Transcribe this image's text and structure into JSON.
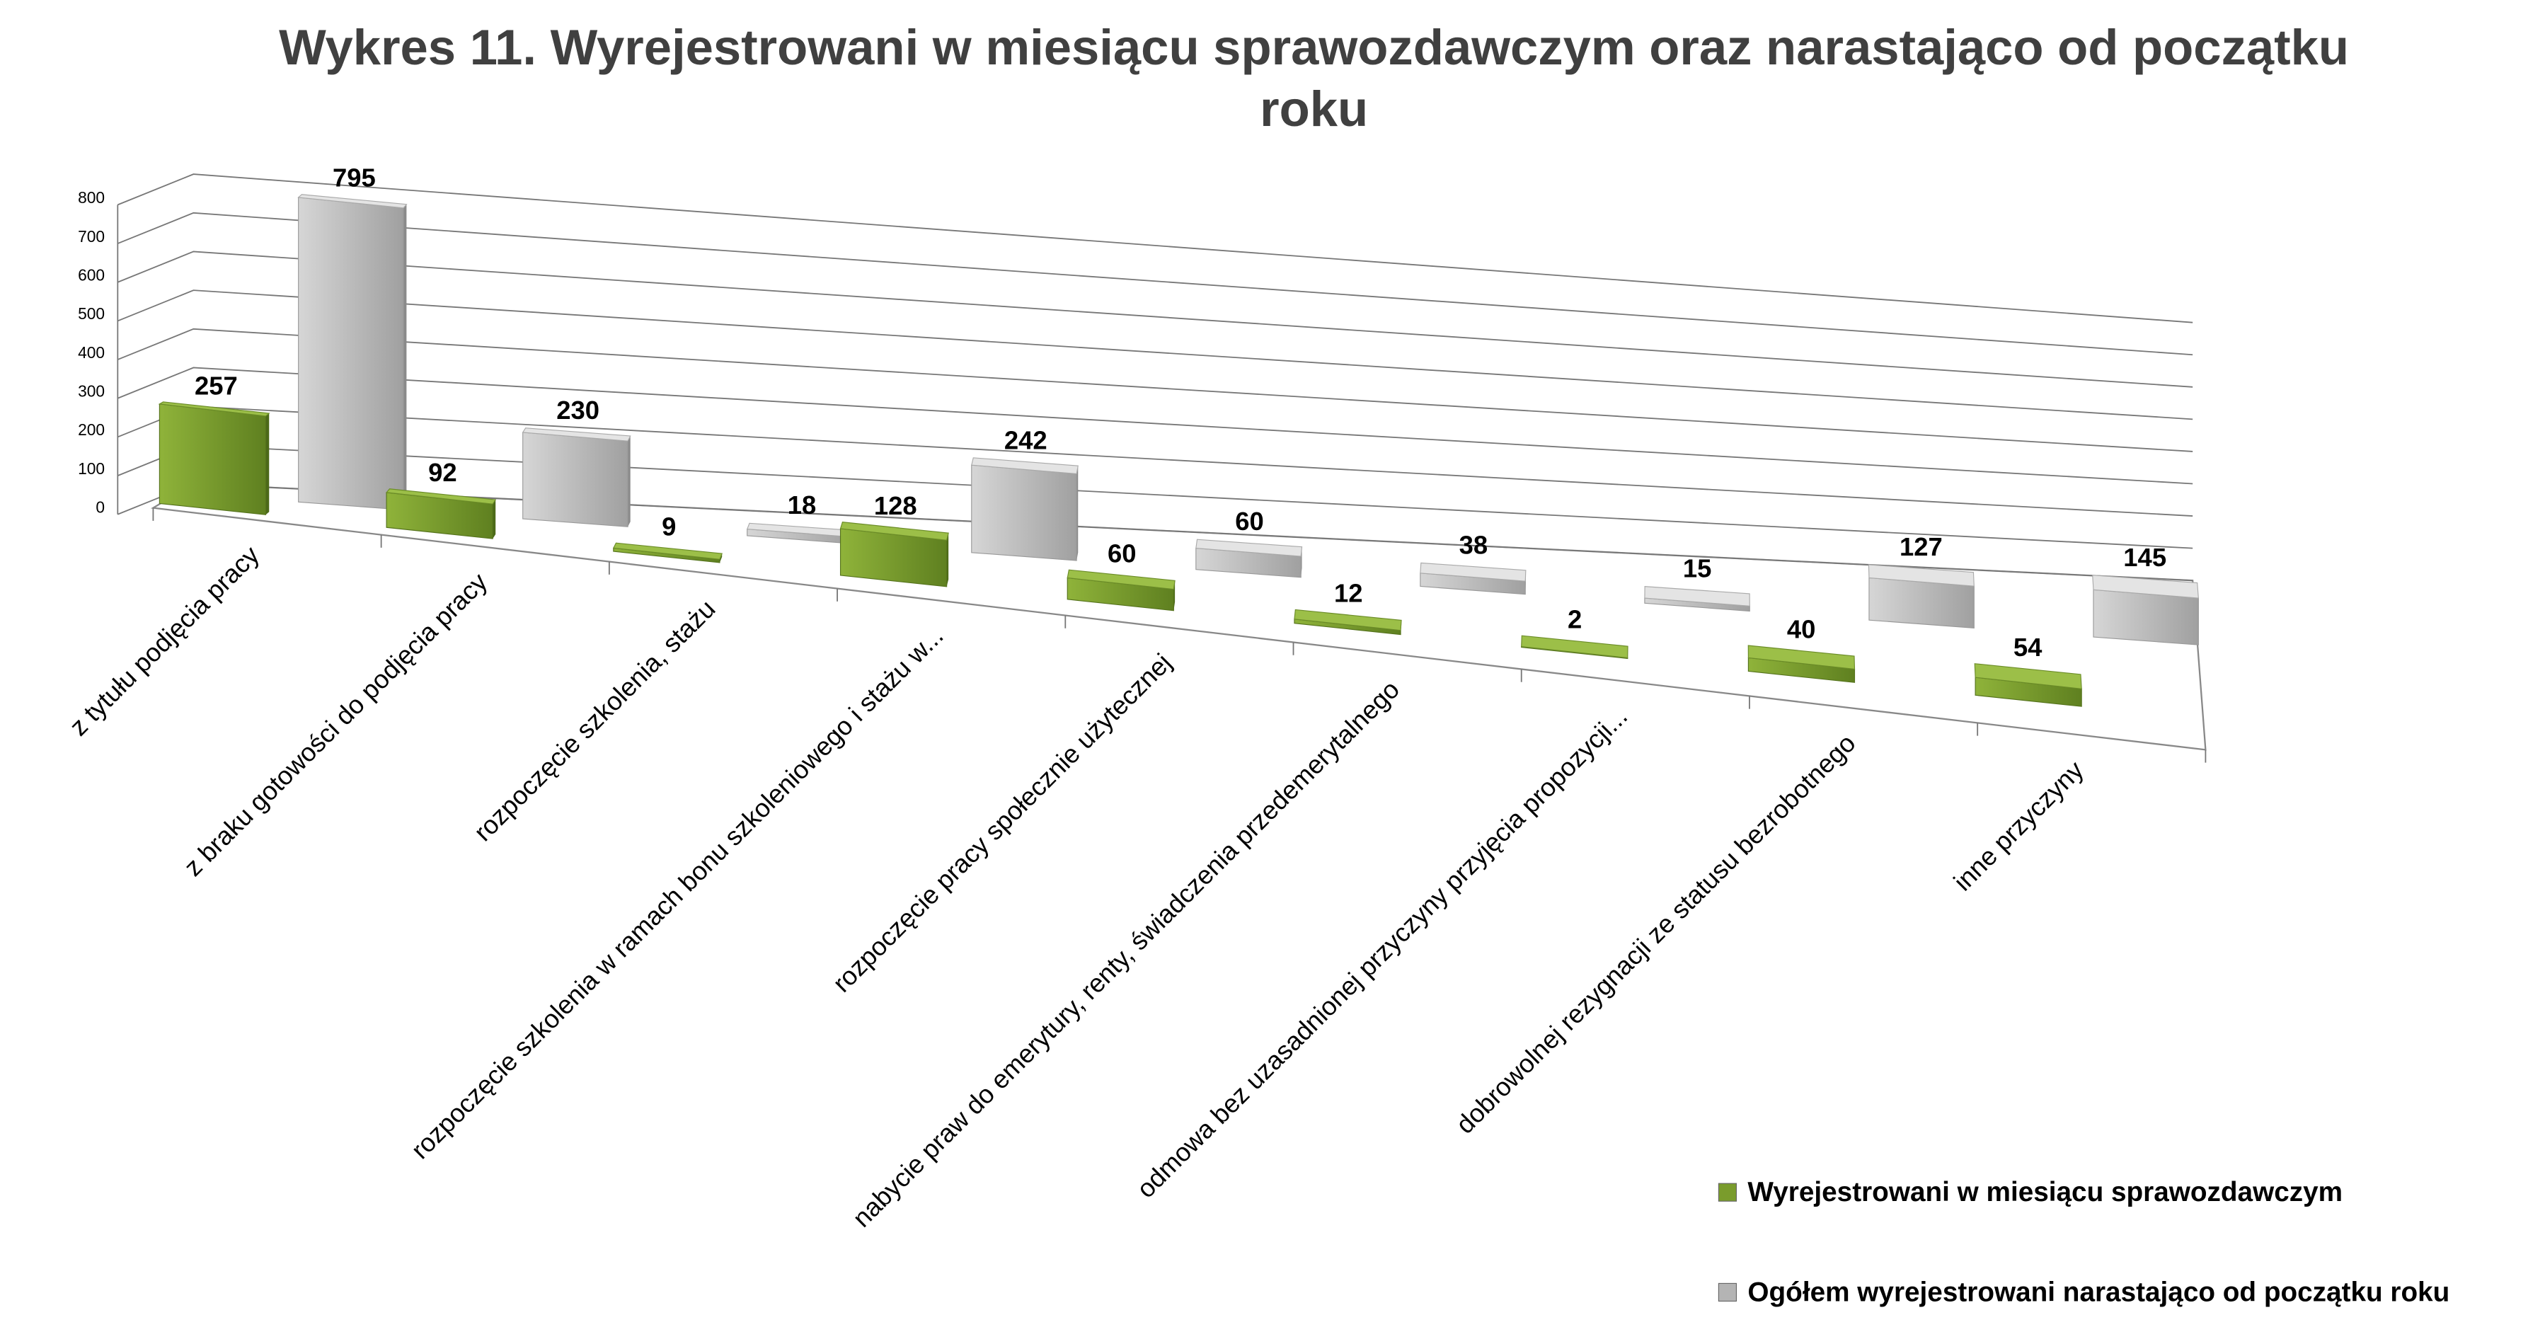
{
  "chart_data": {
    "type": "bar3d",
    "title": "Wykres 11. Wyrejestrowani w miesiącu sprawozdawczym oraz narastająco od początku roku",
    "categories": [
      "z tytułu podjęcia pracy",
      "z braku gotowości do podjęcia pracy",
      "rozpoczęcie szkolenia, stażu",
      "rozpoczęcie szkolenia w ramach bonu szkoleniowego i stażu w...",
      "rozpoczęcie pracy społecznie użytecznej",
      "nabycie praw do emerytury, renty, świadczenia przedemerytalnego",
      "odmowa bez uzasadnionej przyczyny przyjęcia propozycji...",
      "dobrowolnej rezygnacji ze statusu bezrobotnego",
      "inne przyczyny"
    ],
    "series": [
      {
        "name": "Wyrejestrowani w miesiącu sprawozdawczym",
        "color": "#7a9c2c",
        "values": [
          257,
          92,
          9,
          128,
          60,
          12,
          2,
          40,
          54
        ]
      },
      {
        "name": "Ogółem wyrejestrowani narastająco od początku roku",
        "color": "#b4b4b4",
        "values": [
          795,
          230,
          18,
          242,
          60,
          38,
          15,
          127,
          145
        ]
      }
    ],
    "ylim": [
      0,
      800
    ],
    "yticks": [
      0,
      100,
      200,
      300,
      400,
      500,
      600,
      700,
      800
    ],
    "grid": true,
    "legend": "bottom-right"
  }
}
